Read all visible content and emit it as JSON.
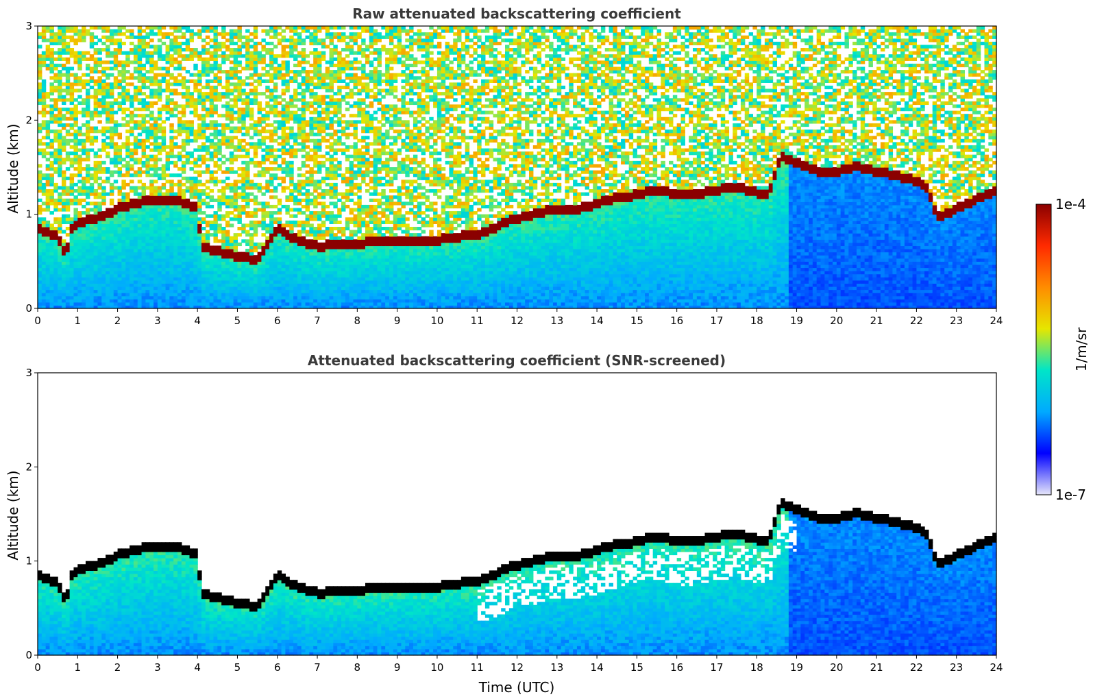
{
  "chart_data": [
    {
      "type": "heatmap",
      "title": "Raw attenuated backscattering coefficient",
      "ylabel": "Altitude (km)",
      "xlabel": "",
      "xlim": [
        0,
        24
      ],
      "ylim": [
        0,
        3
      ],
      "xticks": [
        "0",
        "1",
        "2",
        "3",
        "4",
        "5",
        "6",
        "7",
        "8",
        "9",
        "10",
        "11",
        "12",
        "13",
        "14",
        "15",
        "16",
        "17",
        "18",
        "19",
        "20",
        "21",
        "22",
        "23",
        "24"
      ],
      "yticks": [
        "0",
        "1",
        "2",
        "3"
      ],
      "screened": false
    },
    {
      "type": "heatmap",
      "title": "Attenuated backscattering coefficient (SNR-screened)",
      "ylabel": "Altitude (km)",
      "xlabel": "Time (UTC)",
      "xlim": [
        0,
        24
      ],
      "ylim": [
        0,
        3
      ],
      "xticks": [
        "0",
        "1",
        "2",
        "3",
        "4",
        "5",
        "6",
        "7",
        "8",
        "9",
        "10",
        "11",
        "12",
        "13",
        "14",
        "15",
        "16",
        "17",
        "18",
        "19",
        "20",
        "21",
        "22",
        "23",
        "24"
      ],
      "yticks": [
        "0",
        "1",
        "2",
        "3"
      ],
      "screened": true
    }
  ],
  "colorbar": {
    "label": "1/m/sr",
    "min_label": "1e-7",
    "max_label": "1e-4",
    "scale": "log",
    "colormap": [
      "#e6e6fa",
      "#0000ff",
      "#00aaff",
      "#00e5c8",
      "#e6e600",
      "#ff8c00",
      "#ff2a00",
      "#8b0000"
    ]
  },
  "layer_profile": {
    "time_utc": [
      0,
      0.5,
      0.7,
      0.85,
      1,
      1.5,
      2,
      2.5,
      3,
      3.5,
      4,
      4.1,
      5,
      5.5,
      6,
      6.3,
      7,
      8,
      9,
      10,
      11,
      12,
      13,
      13.5,
      14,
      14.3,
      15,
      15.5,
      16,
      16.5,
      17,
      17.5,
      18,
      18.3,
      18.6,
      19,
      19.5,
      20,
      20.5,
      21,
      21.5,
      22,
      22.3,
      22.5,
      23,
      23.5,
      24
    ],
    "base_altitude_km": [
      0.85,
      0.75,
      0.55,
      0.85,
      0.9,
      0.95,
      1.05,
      1.12,
      1.15,
      1.15,
      1.05,
      0.65,
      0.55,
      0.5,
      0.85,
      0.75,
      0.65,
      0.68,
      0.72,
      0.72,
      0.78,
      0.95,
      1.05,
      1.05,
      1.1,
      1.15,
      1.2,
      1.25,
      1.2,
      1.2,
      1.25,
      1.28,
      1.22,
      1.2,
      1.6,
      1.55,
      1.45,
      1.45,
      1.5,
      1.45,
      1.4,
      1.35,
      1.25,
      0.95,
      1.05,
      1.15,
      1.25
    ]
  }
}
